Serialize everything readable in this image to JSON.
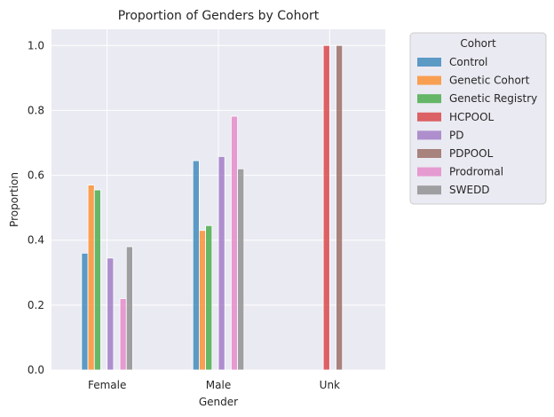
{
  "chart_data": {
    "type": "bar",
    "title": "Proportion of Genders by Cohort",
    "xlabel": "Gender",
    "ylabel": "Proportion",
    "categories": [
      "Female",
      "Male",
      "Unk"
    ],
    "ylim": [
      0,
      1.05
    ],
    "yticks": [
      0.0,
      0.2,
      0.4,
      0.6,
      0.8,
      1.0
    ],
    "ytick_labels": [
      "0.0",
      "0.2",
      "0.4",
      "0.6",
      "0.8",
      "1.0"
    ],
    "grid": true,
    "legend": {
      "title": "Cohort",
      "placement": "outside-right-top"
    },
    "series": [
      {
        "name": "Control",
        "color": "#1f77b4",
        "values": [
          0.36,
          0.645,
          0.0
        ]
      },
      {
        "name": "Genetic Cohort",
        "color": "#ff7f0e",
        "values": [
          0.57,
          0.43,
          0.0
        ]
      },
      {
        "name": "Genetic Registry",
        "color": "#2ca02c",
        "values": [
          0.555,
          0.445,
          0.0
        ]
      },
      {
        "name": "HCPOOL",
        "color": "#d62728",
        "values": [
          0.0,
          0.0,
          1.0
        ]
      },
      {
        "name": "PD",
        "color": "#9467bd",
        "values": [
          0.345,
          0.658,
          0.0
        ]
      },
      {
        "name": "PDPOOL",
        "color": "#8c564b",
        "values": [
          0.0,
          0.0,
          1.0
        ]
      },
      {
        "name": "Prodromal",
        "color": "#e377c2",
        "values": [
          0.22,
          0.782,
          0.0
        ]
      },
      {
        "name": "SWEDD",
        "color": "#7f7f7f",
        "values": [
          0.38,
          0.62,
          0.0
        ]
      }
    ]
  },
  "colors": {
    "plot_background": "#eaeaf2",
    "grid": "#ffffff",
    "text": "#262626"
  }
}
